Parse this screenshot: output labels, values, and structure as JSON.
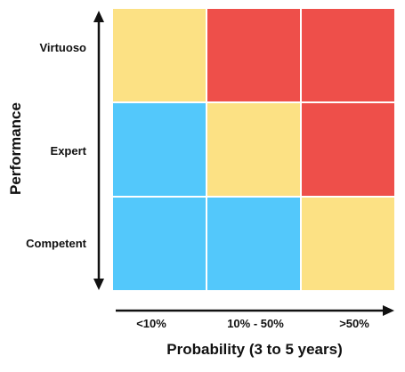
{
  "diagram": {
    "y_axis_title": "Performance",
    "x_axis_title": "Probability (3 to 5 years)",
    "rows": [
      "Virtuoso",
      "Expert",
      "Competent"
    ],
    "columns": [
      "<10%",
      "10% - 50%",
      ">50%"
    ],
    "colors": {
      "yellow": "#FCE184",
      "red": "#EE4F4A",
      "blue": "#53C8FB"
    },
    "cells": [
      [
        "yellow",
        "red",
        "red"
      ],
      [
        "blue",
        "yellow",
        "red"
      ],
      [
        "blue",
        "blue",
        "yellow"
      ]
    ]
  }
}
